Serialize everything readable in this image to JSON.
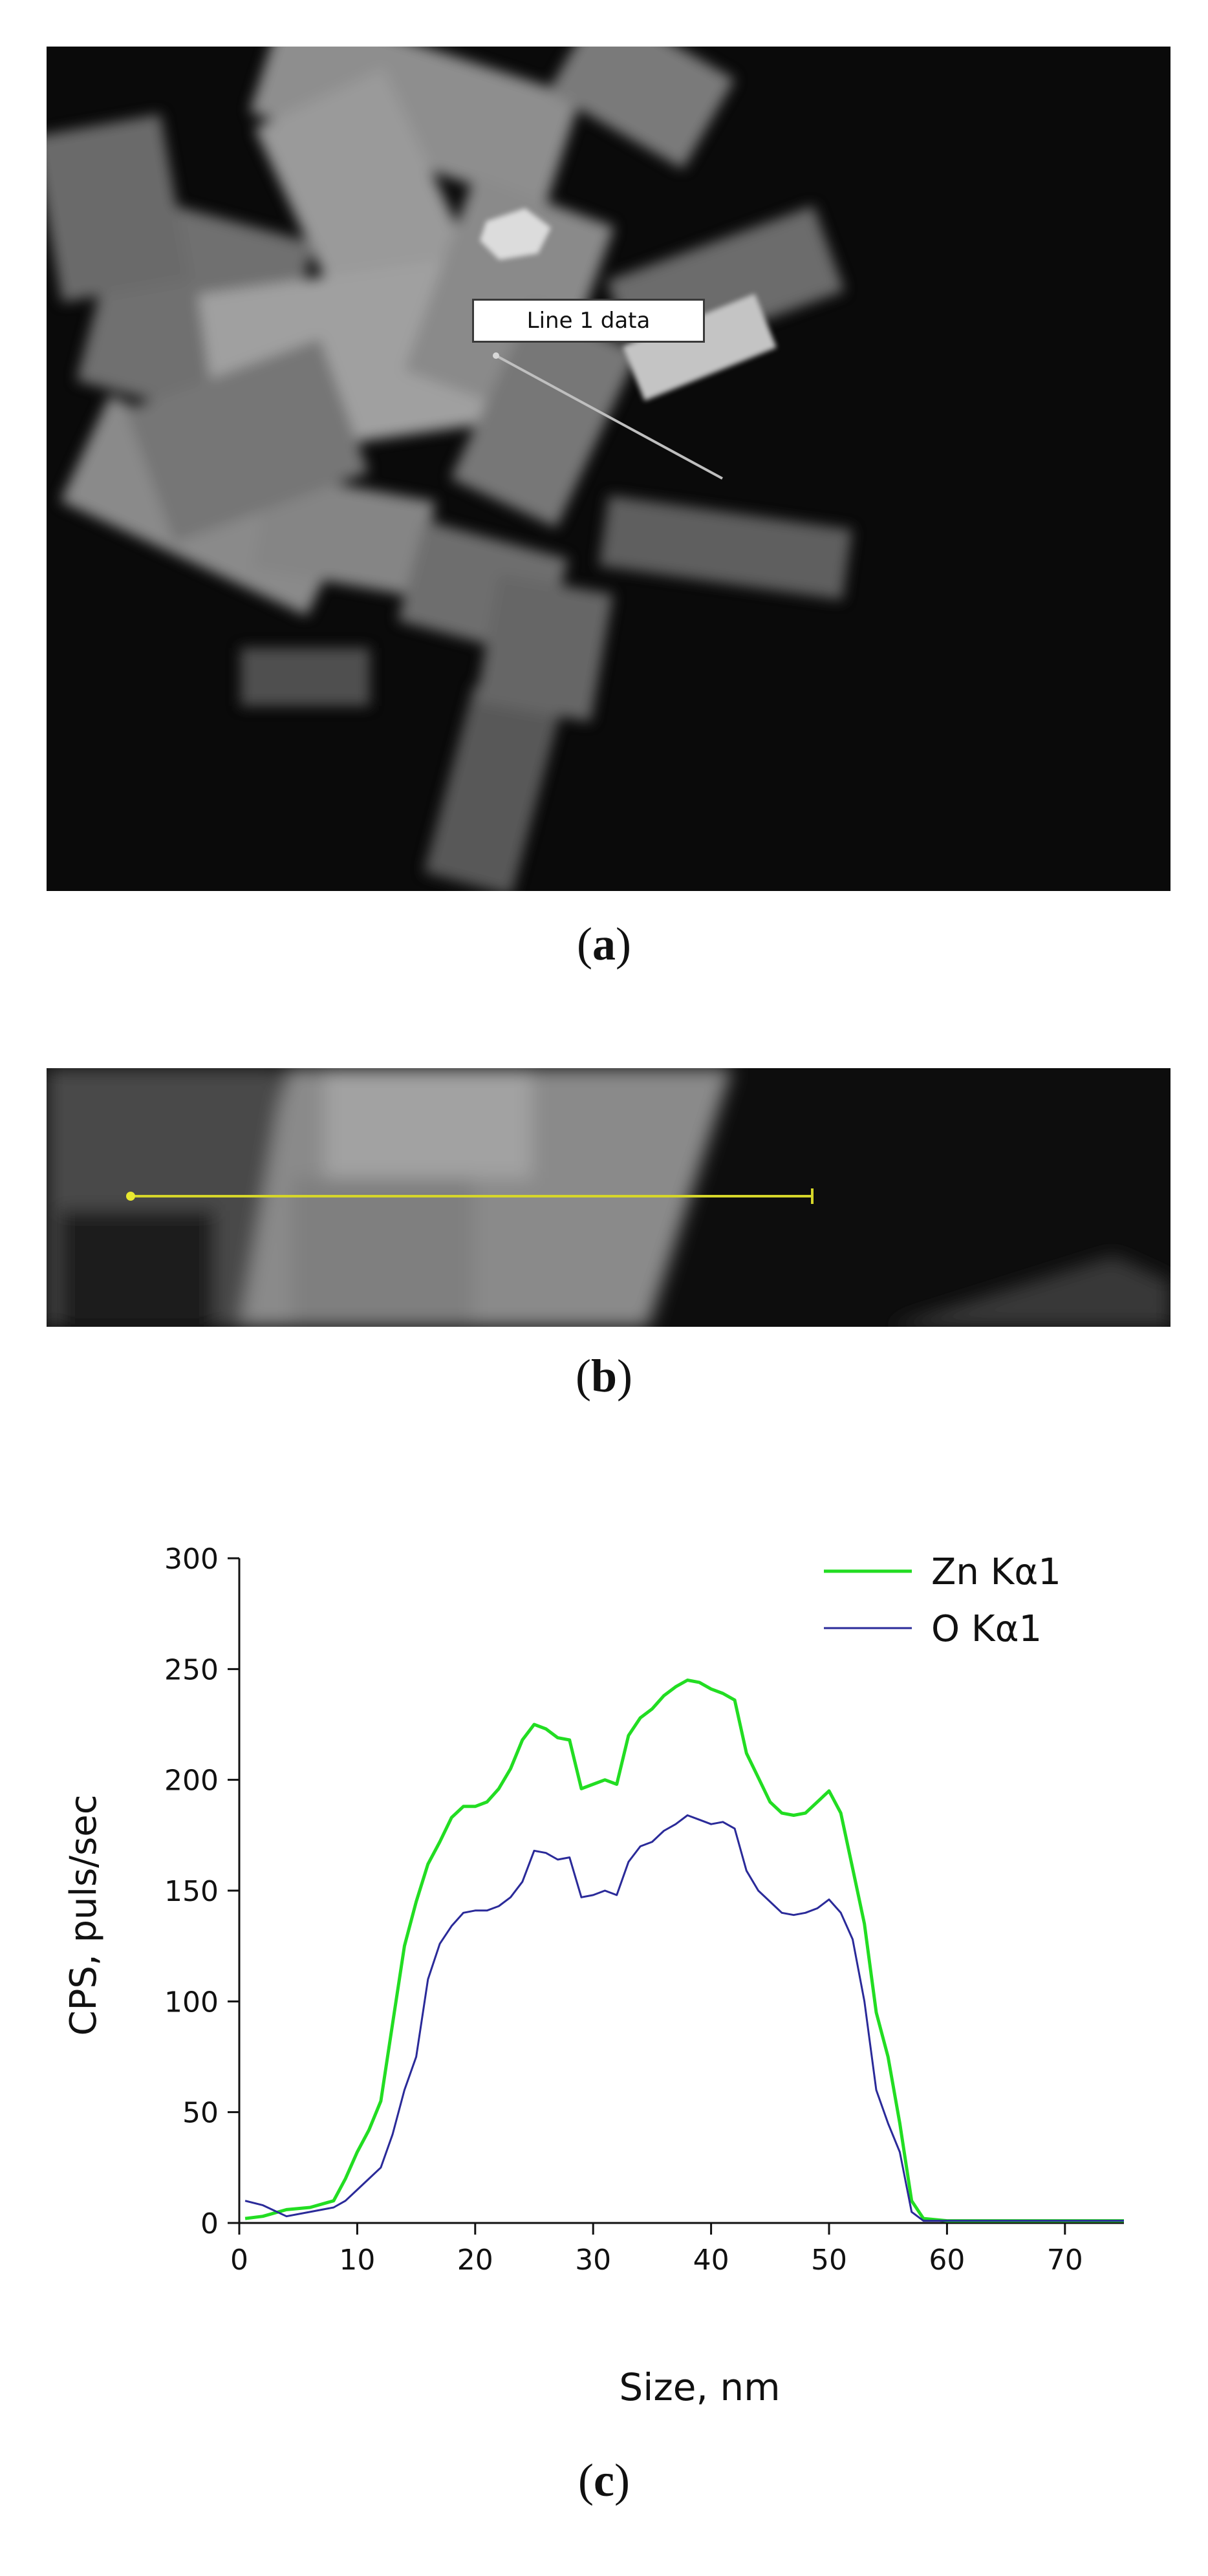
{
  "figure": {
    "panel_a": {
      "label": "a",
      "callout": "Line 1 data"
    },
    "panel_b": {
      "label": "b"
    },
    "panel_c": {
      "label": "c"
    }
  },
  "chart_data": {
    "type": "line",
    "xlabel": "Size, nm",
    "ylabel": "CPS, puls/sec",
    "xlim": [
      0,
      75
    ],
    "ylim": [
      0,
      300
    ],
    "xticks": [
      0,
      10,
      20,
      30,
      40,
      50,
      60,
      70
    ],
    "yticks": [
      0,
      50,
      100,
      150,
      200,
      250,
      300
    ],
    "grid": false,
    "legend_position": "top-right",
    "series": [
      {
        "name": "Zn Kα1",
        "color": "#22dd22",
        "points": [
          [
            0.5,
            2
          ],
          [
            2,
            3
          ],
          [
            4,
            6
          ],
          [
            6,
            7
          ],
          [
            8,
            10
          ],
          [
            9,
            20
          ],
          [
            10,
            32
          ],
          [
            11,
            42
          ],
          [
            12,
            55
          ],
          [
            13,
            90
          ],
          [
            14,
            125
          ],
          [
            15,
            145
          ],
          [
            16,
            162
          ],
          [
            17,
            172
          ],
          [
            18,
            183
          ],
          [
            19,
            188
          ],
          [
            20,
            188
          ],
          [
            21,
            190
          ],
          [
            22,
            196
          ],
          [
            23,
            205
          ],
          [
            24,
            218
          ],
          [
            25,
            225
          ],
          [
            26,
            223
          ],
          [
            27,
            219
          ],
          [
            28,
            218
          ],
          [
            29,
            196
          ],
          [
            30,
            198
          ],
          [
            31,
            200
          ],
          [
            32,
            198
          ],
          [
            33,
            220
          ],
          [
            34,
            228
          ],
          [
            35,
            232
          ],
          [
            36,
            238
          ],
          [
            37,
            242
          ],
          [
            38,
            245
          ],
          [
            39,
            244
          ],
          [
            40,
            241
          ],
          [
            41,
            239
          ],
          [
            42,
            236
          ],
          [
            43,
            212
          ],
          [
            44,
            201
          ],
          [
            45,
            190
          ],
          [
            46,
            185
          ],
          [
            47,
            184
          ],
          [
            48,
            185
          ],
          [
            49,
            190
          ],
          [
            50,
            195
          ],
          [
            51,
            185
          ],
          [
            52,
            160
          ],
          [
            53,
            135
          ],
          [
            54,
            95
          ],
          [
            55,
            75
          ],
          [
            56,
            45
          ],
          [
            57,
            10
          ],
          [
            58,
            2
          ],
          [
            60,
            1
          ],
          [
            65,
            1
          ],
          [
            70,
            1
          ],
          [
            75,
            1
          ]
        ]
      },
      {
        "name": "O Kα1",
        "color": "#2a2a99",
        "points": [
          [
            0.5,
            10
          ],
          [
            2,
            8
          ],
          [
            4,
            3
          ],
          [
            6,
            5
          ],
          [
            8,
            7
          ],
          [
            9,
            10
          ],
          [
            10,
            15
          ],
          [
            11,
            20
          ],
          [
            12,
            25
          ],
          [
            13,
            40
          ],
          [
            14,
            60
          ],
          [
            15,
            75
          ],
          [
            16,
            110
          ],
          [
            17,
            126
          ],
          [
            18,
            134
          ],
          [
            19,
            140
          ],
          [
            20,
            141
          ],
          [
            21,
            141
          ],
          [
            22,
            143
          ],
          [
            23,
            147
          ],
          [
            24,
            154
          ],
          [
            25,
            168
          ],
          [
            26,
            167
          ],
          [
            27,
            164
          ],
          [
            28,
            165
          ],
          [
            29,
            147
          ],
          [
            30,
            148
          ],
          [
            31,
            150
          ],
          [
            32,
            148
          ],
          [
            33,
            163
          ],
          [
            34,
            170
          ],
          [
            35,
            172
          ],
          [
            36,
            177
          ],
          [
            37,
            180
          ],
          [
            38,
            184
          ],
          [
            39,
            182
          ],
          [
            40,
            180
          ],
          [
            41,
            181
          ],
          [
            42,
            178
          ],
          [
            43,
            159
          ],
          [
            44,
            150
          ],
          [
            45,
            145
          ],
          [
            46,
            140
          ],
          [
            47,
            139
          ],
          [
            48,
            140
          ],
          [
            49,
            142
          ],
          [
            50,
            146
          ],
          [
            51,
            140
          ],
          [
            52,
            128
          ],
          [
            53,
            100
          ],
          [
            54,
            60
          ],
          [
            55,
            45
          ],
          [
            56,
            32
          ],
          [
            57,
            5
          ],
          [
            58,
            1
          ],
          [
            60,
            1
          ],
          [
            65,
            1
          ],
          [
            70,
            1
          ],
          [
            75,
            1
          ]
        ]
      }
    ]
  }
}
